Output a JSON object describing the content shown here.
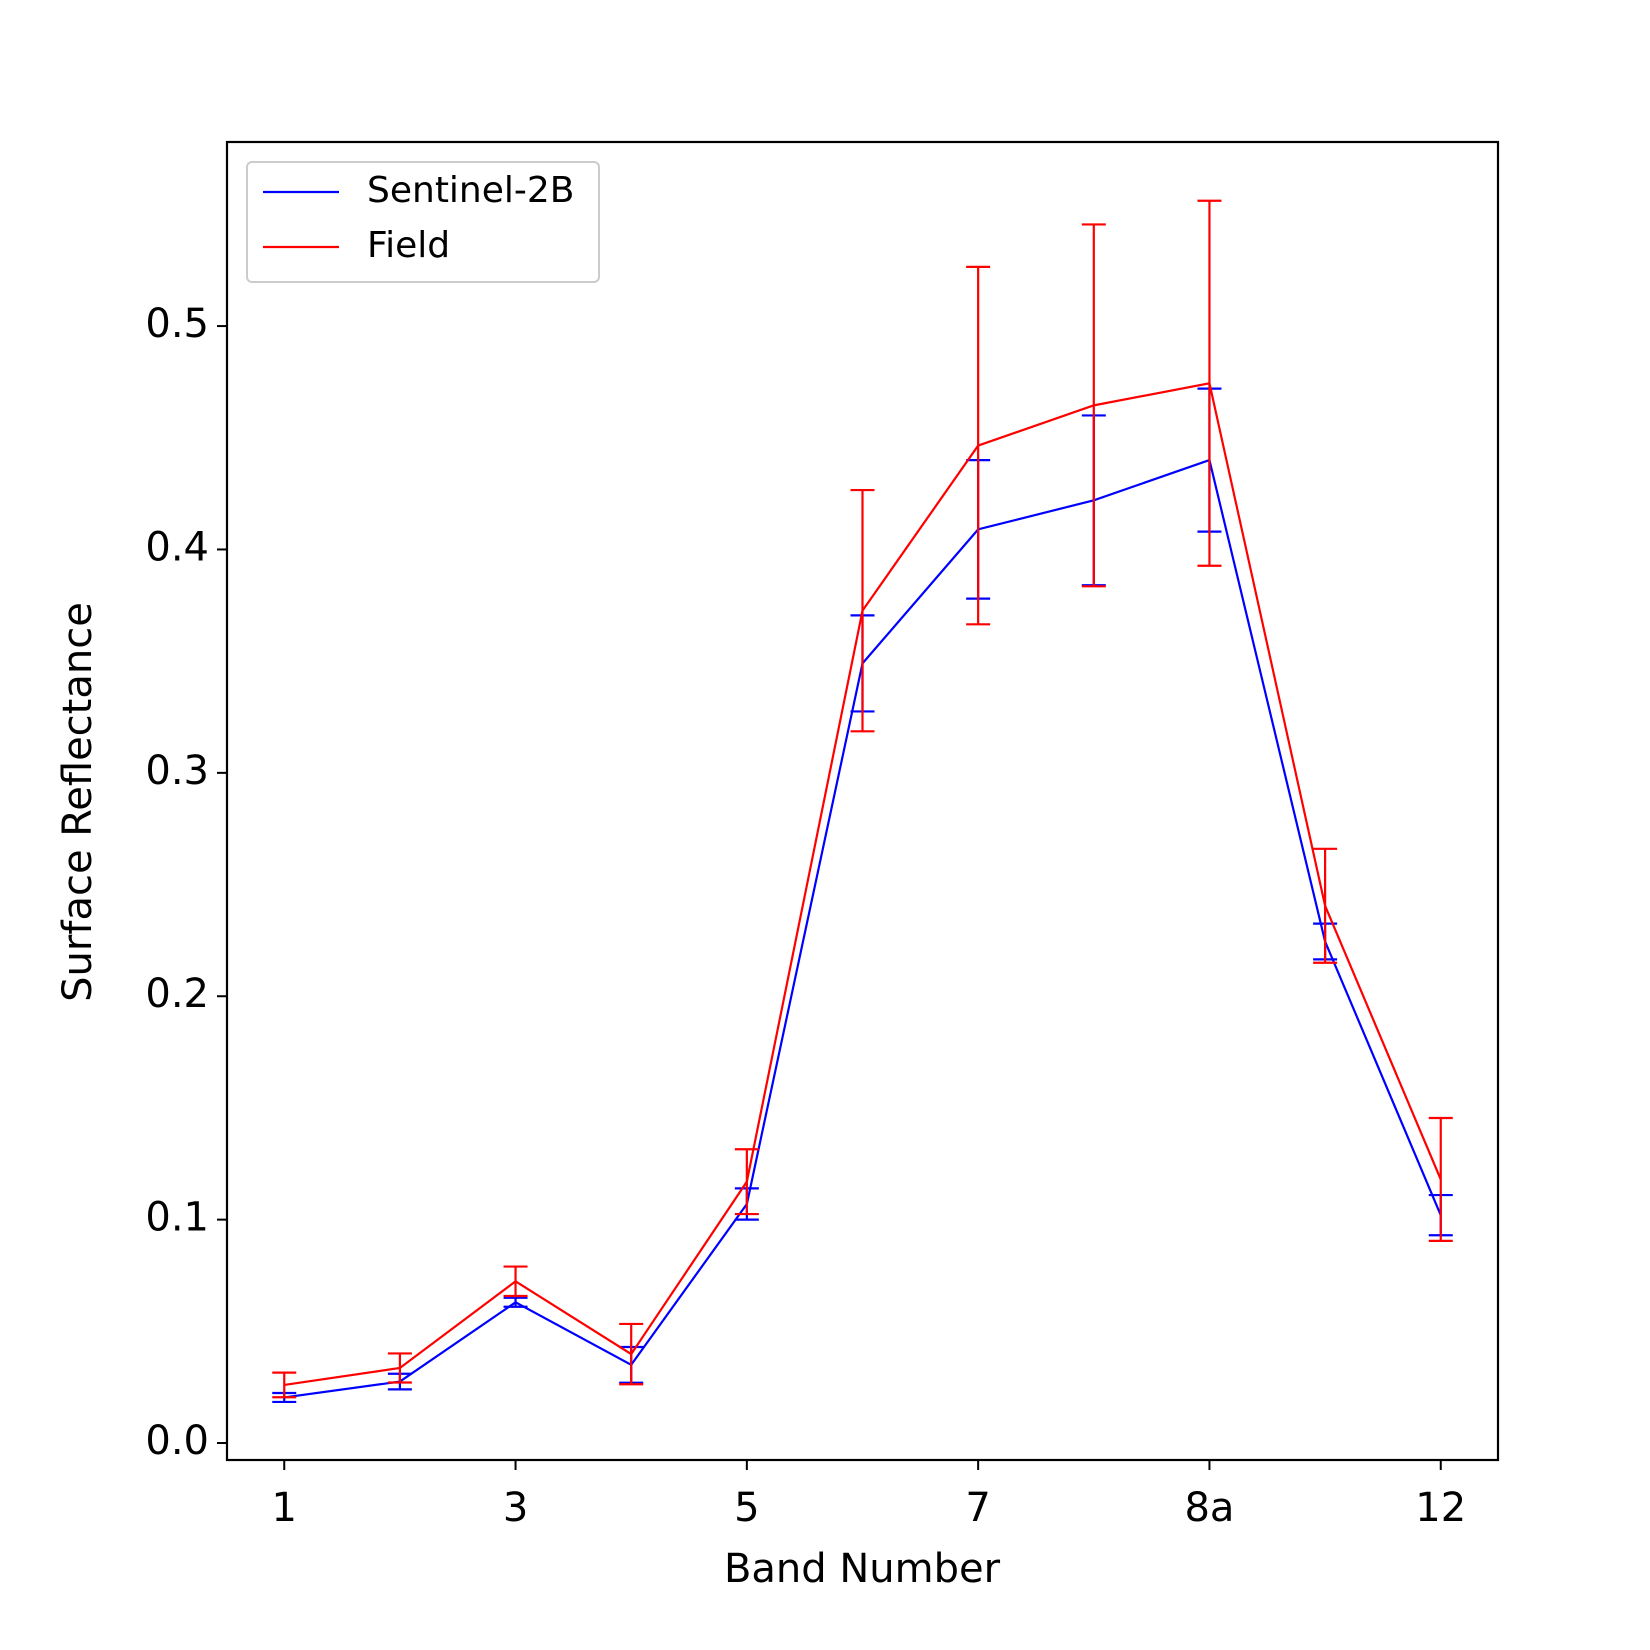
{
  "chart_data": {
    "type": "line",
    "xlabel": "Band Number",
    "ylabel": "Surface Reflectance",
    "categories": [
      "1",
      null,
      "3",
      null,
      "5",
      null,
      "7",
      null,
      "8a",
      null,
      "12"
    ],
    "series": [
      {
        "name": "Sentinel-2B",
        "color": "#0000ff",
        "values": [
          0.0204,
          0.0275,
          0.063,
          0.035,
          0.107,
          0.349,
          0.409,
          0.422,
          0.44,
          0.2245,
          0.102
        ],
        "errors": [
          0.002,
          0.0035,
          0.002,
          0.008,
          0.007,
          0.0215,
          0.031,
          0.038,
          0.032,
          0.008,
          0.009
        ]
      },
      {
        "name": "Field",
        "color": "#ff0000",
        "values": [
          0.026,
          0.0336,
          0.0724,
          0.0398,
          0.117,
          0.3726,
          0.4465,
          0.4645,
          0.4744,
          0.2405,
          0.118
        ],
        "errors": [
          0.0055,
          0.0065,
          0.0066,
          0.0135,
          0.0145,
          0.054,
          0.08,
          0.081,
          0.0817,
          0.0255,
          0.0275
        ]
      }
    ],
    "ylim": [
      -0.0076,
      0.5824
    ],
    "yticks": [
      {
        "value": 0,
        "label": "0.0"
      },
      0.1,
      0.2,
      0.3,
      0.4,
      0.5
    ],
    "legend": "upper left"
  }
}
